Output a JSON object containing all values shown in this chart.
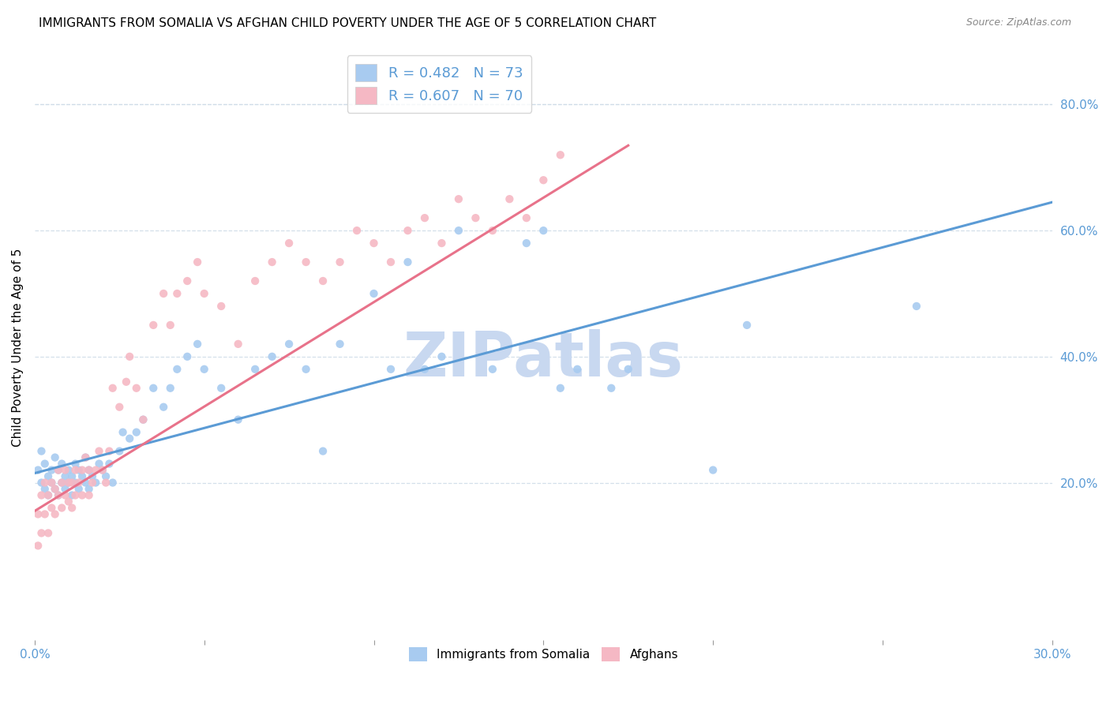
{
  "title": "IMMIGRANTS FROM SOMALIA VS AFGHAN CHILD POVERTY UNDER THE AGE OF 5 CORRELATION CHART",
  "source": "Source: ZipAtlas.com",
  "ylabel": "Child Poverty Under the Age of 5",
  "xlim": [
    0.0,
    0.3
  ],
  "ylim": [
    -0.05,
    0.88
  ],
  "x_ticks": [
    0.0,
    0.05,
    0.1,
    0.15,
    0.2,
    0.25,
    0.3
  ],
  "x_tick_labels": [
    "0.0%",
    "",
    "",
    "",
    "",
    "",
    "30.0%"
  ],
  "y_ticks_right": [
    0.2,
    0.4,
    0.6,
    0.8
  ],
  "y_tick_labels_right": [
    "20.0%",
    "40.0%",
    "60.0%",
    "80.0%"
  ],
  "somalia_color": "#A8CBF0",
  "afghan_color": "#F5B8C4",
  "somalia_line_color": "#5B9BD5",
  "afghan_line_color": "#E8728A",
  "legend_R_somalia": "R = 0.482",
  "legend_N_somalia": "N = 73",
  "legend_R_afghan": "R = 0.607",
  "legend_N_afghan": "N = 70",
  "watermark": "ZIPatlas",
  "watermark_color": "#C8D8F0",
  "title_fontsize": 11,
  "axis_color": "#5B9BD5",
  "grid_color": "#D0DCE8",
  "somalia_scatter_x": [
    0.001,
    0.002,
    0.002,
    0.003,
    0.003,
    0.004,
    0.004,
    0.005,
    0.005,
    0.006,
    0.006,
    0.007,
    0.007,
    0.008,
    0.008,
    0.009,
    0.009,
    0.01,
    0.01,
    0.011,
    0.011,
    0.012,
    0.012,
    0.013,
    0.013,
    0.014,
    0.015,
    0.015,
    0.016,
    0.016,
    0.017,
    0.018,
    0.019,
    0.02,
    0.021,
    0.022,
    0.023,
    0.025,
    0.026,
    0.028,
    0.03,
    0.032,
    0.035,
    0.038,
    0.04,
    0.042,
    0.045,
    0.048,
    0.05,
    0.055,
    0.06,
    0.065,
    0.07,
    0.075,
    0.08,
    0.085,
    0.09,
    0.1,
    0.105,
    0.11,
    0.115,
    0.12,
    0.125,
    0.135,
    0.145,
    0.15,
    0.155,
    0.16,
    0.17,
    0.175,
    0.2,
    0.21,
    0.26
  ],
  "somalia_scatter_y": [
    0.22,
    0.2,
    0.25,
    0.19,
    0.23,
    0.21,
    0.18,
    0.22,
    0.2,
    0.24,
    0.19,
    0.22,
    0.18,
    0.2,
    0.23,
    0.21,
    0.19,
    0.22,
    0.2,
    0.18,
    0.21,
    0.2,
    0.23,
    0.19,
    0.22,
    0.21,
    0.2,
    0.24,
    0.19,
    0.22,
    0.21,
    0.2,
    0.23,
    0.22,
    0.21,
    0.23,
    0.2,
    0.25,
    0.28,
    0.27,
    0.28,
    0.3,
    0.35,
    0.32,
    0.35,
    0.38,
    0.4,
    0.42,
    0.38,
    0.35,
    0.3,
    0.38,
    0.4,
    0.42,
    0.38,
    0.25,
    0.42,
    0.5,
    0.38,
    0.55,
    0.38,
    0.4,
    0.6,
    0.38,
    0.58,
    0.6,
    0.35,
    0.38,
    0.35,
    0.38,
    0.22,
    0.45,
    0.48
  ],
  "afghan_scatter_x": [
    0.001,
    0.001,
    0.002,
    0.002,
    0.003,
    0.003,
    0.004,
    0.004,
    0.005,
    0.005,
    0.006,
    0.006,
    0.007,
    0.007,
    0.008,
    0.008,
    0.009,
    0.009,
    0.01,
    0.01,
    0.011,
    0.011,
    0.012,
    0.012,
    0.013,
    0.014,
    0.014,
    0.015,
    0.016,
    0.016,
    0.017,
    0.018,
    0.019,
    0.02,
    0.021,
    0.022,
    0.023,
    0.025,
    0.027,
    0.028,
    0.03,
    0.032,
    0.035,
    0.038,
    0.04,
    0.042,
    0.045,
    0.048,
    0.05,
    0.055,
    0.06,
    0.065,
    0.07,
    0.075,
    0.08,
    0.085,
    0.09,
    0.095,
    0.1,
    0.105,
    0.11,
    0.115,
    0.12,
    0.125,
    0.13,
    0.135,
    0.14,
    0.145,
    0.15,
    0.155
  ],
  "afghan_scatter_y": [
    0.15,
    0.1,
    0.18,
    0.12,
    0.2,
    0.15,
    0.18,
    0.12,
    0.2,
    0.16,
    0.19,
    0.15,
    0.22,
    0.18,
    0.2,
    0.16,
    0.22,
    0.18,
    0.2,
    0.17,
    0.2,
    0.16,
    0.22,
    0.18,
    0.2,
    0.22,
    0.18,
    0.24,
    0.22,
    0.18,
    0.2,
    0.22,
    0.25,
    0.22,
    0.2,
    0.25,
    0.35,
    0.32,
    0.36,
    0.4,
    0.35,
    0.3,
    0.45,
    0.5,
    0.45,
    0.5,
    0.52,
    0.55,
    0.5,
    0.48,
    0.42,
    0.52,
    0.55,
    0.58,
    0.55,
    0.52,
    0.55,
    0.6,
    0.58,
    0.55,
    0.6,
    0.62,
    0.58,
    0.65,
    0.62,
    0.6,
    0.65,
    0.62,
    0.68,
    0.72
  ],
  "somalia_line_x": [
    0.0,
    0.3
  ],
  "somalia_line_y": [
    0.215,
    0.645
  ],
  "afghan_line_x": [
    0.0,
    0.175
  ],
  "afghan_line_y": [
    0.155,
    0.735
  ]
}
